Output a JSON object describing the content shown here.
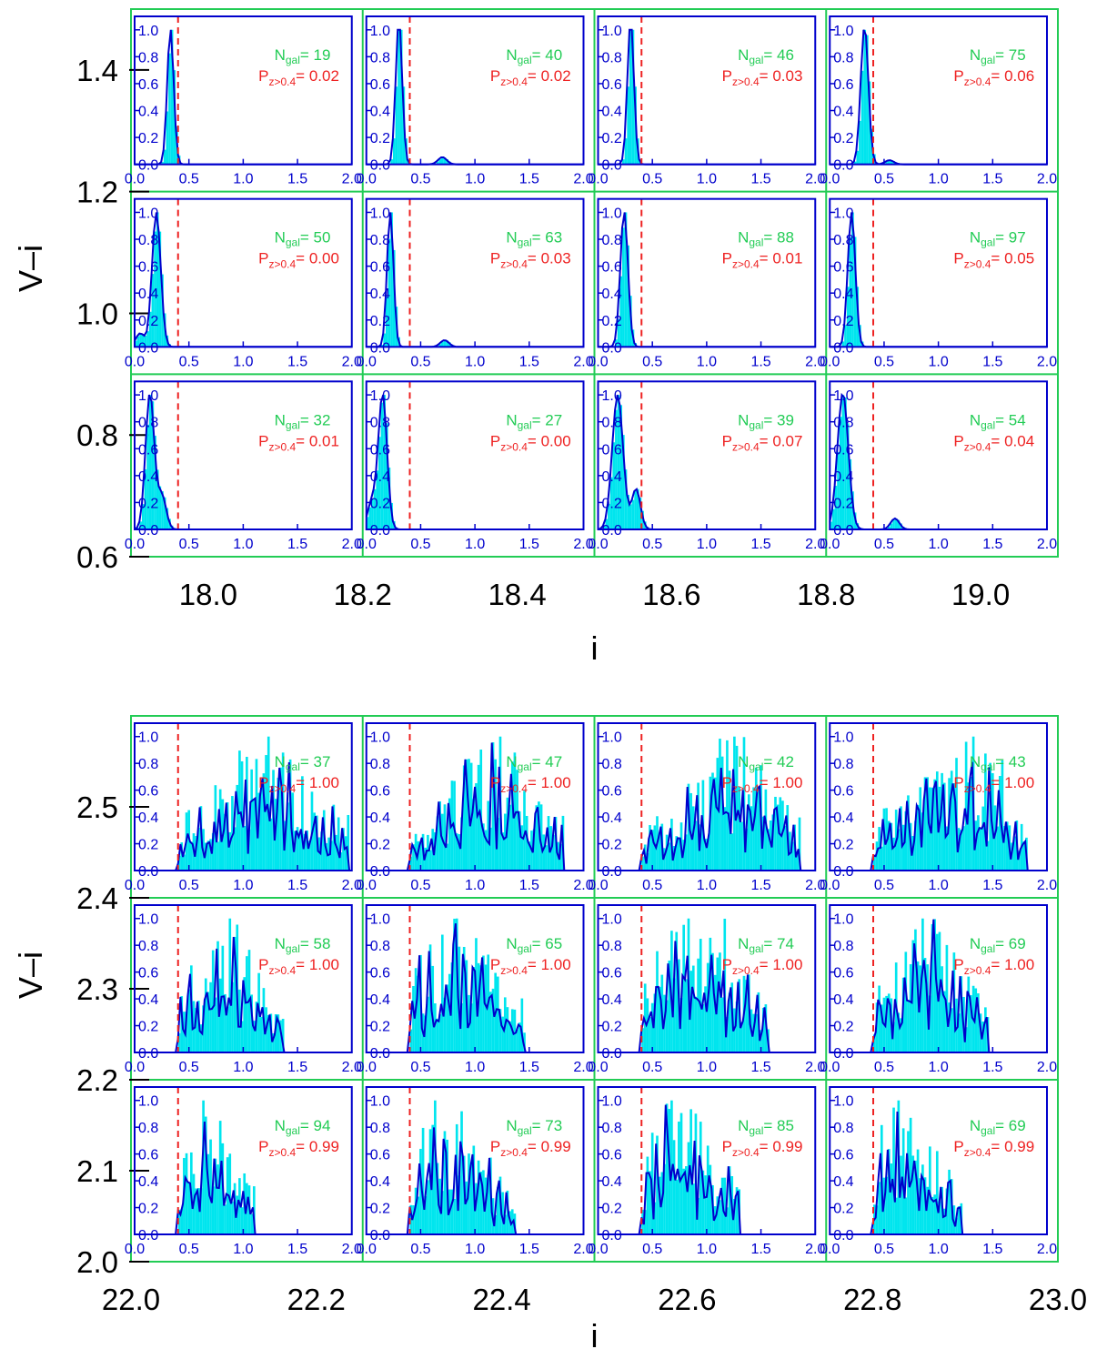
{
  "colors": {
    "frame": "#22cc55",
    "inset_axes": "#0000cc",
    "histogram": "#00e5ee",
    "curve": "#0000cc",
    "cut_line": "#ee2222",
    "n_gal_text": "#22cc55",
    "prob_text": "#ee2222",
    "outer_axis": "#000000"
  },
  "labels": {
    "n_gal_main": "N",
    "n_gal_sub": "gal",
    "n_gal_sep": "= ",
    "p_main": "P",
    "p_sub": "z>0.4",
    "p_sep": "= "
  },
  "chart_data": [
    {
      "type": "histogram-grid",
      "xlabel": "i",
      "ylabel": "V–i",
      "xticks": [
        "18.0",
        "18.2",
        "18.4",
        "18.6",
        "18.8",
        "19.0"
      ],
      "yticks": [
        "0.6",
        "0.8",
        "1.0",
        "1.2",
        "1.4"
      ],
      "xlim": [
        17.9,
        19.1
      ],
      "ylim": [
        0.6,
        1.5
      ],
      "inset_xticks": [
        "0.0",
        "0.5",
        "1.0",
        "1.5",
        "2.0"
      ],
      "inset_yticks": [
        "0.0",
        "0.2",
        "0.4",
        "0.6",
        "0.8",
        "1.0"
      ],
      "inset_xlim": [
        0,
        2
      ],
      "inset_ylim": [
        0,
        1.1
      ],
      "cut_z": 0.4,
      "panels": [
        [
          {
            "n_gal": "19",
            "p": "0.02",
            "peak": 0.33,
            "width": 0.03,
            "extra": []
          },
          {
            "n_gal": "40",
            "p": "0.02",
            "peak": 0.3,
            "width": 0.03,
            "extra": [
              [
                0.7,
                0.05
              ]
            ]
          },
          {
            "n_gal": "46",
            "p": "0.03",
            "peak": 0.3,
            "width": 0.03,
            "extra": []
          },
          {
            "n_gal": "75",
            "p": "0.06",
            "peak": 0.32,
            "width": 0.035,
            "extra": [
              [
                0.55,
                0.03
              ]
            ]
          }
        ],
        [
          {
            "n_gal": "50",
            "p": "0.00",
            "peak": 0.2,
            "width": 0.04,
            "extra": [
              [
                0.05,
                0.1
              ]
            ]
          },
          {
            "n_gal": "63",
            "p": "0.03",
            "peak": 0.22,
            "width": 0.03,
            "extra": [
              [
                0.72,
                0.05
              ]
            ]
          },
          {
            "n_gal": "88",
            "p": "0.01",
            "peak": 0.24,
            "width": 0.035,
            "extra": []
          },
          {
            "n_gal": "97",
            "p": "0.05",
            "peak": 0.2,
            "width": 0.035,
            "extra": []
          }
        ],
        [
          {
            "n_gal": "32",
            "p": "0.01",
            "peak": 0.14,
            "width": 0.04,
            "extra": [
              [
                0.25,
                0.25
              ]
            ]
          },
          {
            "n_gal": "27",
            "p": "0.00",
            "peak": 0.15,
            "width": 0.04,
            "extra": [
              [
                0.05,
                0.2
              ]
            ]
          },
          {
            "n_gal": "39",
            "p": "0.07",
            "peak": 0.18,
            "width": 0.05,
            "extra": [
              [
                0.35,
                0.3
              ]
            ]
          },
          {
            "n_gal": "54",
            "p": "0.04",
            "peak": 0.12,
            "width": 0.05,
            "extra": [
              [
                0.6,
                0.08
              ]
            ]
          }
        ]
      ]
    },
    {
      "type": "histogram-grid",
      "xlabel": "i",
      "ylabel": "V–i",
      "xticks": [
        "22.0",
        "22.2",
        "22.4",
        "22.6",
        "22.8",
        "23.0"
      ],
      "yticks": [
        "2.0",
        "2.1",
        "2.2",
        "2.3",
        "2.4",
        "2.5"
      ],
      "xlim": [
        22.0,
        23.0
      ],
      "ylim": [
        2.0,
        2.6
      ],
      "inset_xticks": [
        "0.0",
        "0.5",
        "1.0",
        "1.5",
        "2.0"
      ],
      "inset_yticks": [
        "0.0",
        "0.2",
        "0.4",
        "0.6",
        "0.8",
        "1.0"
      ],
      "inset_xlim": [
        0,
        2
      ],
      "inset_ylim": [
        0,
        1.1
      ],
      "cut_z": 0.4,
      "panels": [
        [
          {
            "n_gal": "37",
            "p": "1.00",
            "peak": 1.2,
            "width": 0.35,
            "extra": []
          },
          {
            "n_gal": "47",
            "p": "1.00",
            "peak": 1.15,
            "width": 0.3,
            "extra": []
          },
          {
            "n_gal": "42",
            "p": "1.00",
            "peak": 1.2,
            "width": 0.3,
            "extra": []
          },
          {
            "n_gal": "43",
            "p": "1.00",
            "peak": 1.15,
            "width": 0.3,
            "extra": [
              [
                1.58,
                0.2
              ]
            ]
          }
        ],
        [
          {
            "n_gal": "58",
            "p": "1.00",
            "peak": 0.82,
            "width": 0.25,
            "extra": []
          },
          {
            "n_gal": "65",
            "p": "1.00",
            "peak": 0.8,
            "width": 0.3,
            "extra": []
          },
          {
            "n_gal": "74",
            "p": "1.00",
            "peak": 0.9,
            "width": 0.3,
            "extra": []
          },
          {
            "n_gal": "69",
            "p": "1.00",
            "peak": 0.9,
            "width": 0.25,
            "extra": []
          }
        ],
        [
          {
            "n_gal": "94",
            "p": "0.99",
            "peak": 0.65,
            "width": 0.2,
            "extra": []
          },
          {
            "n_gal": "73",
            "p": "0.99",
            "peak": 0.7,
            "width": 0.3,
            "extra": []
          },
          {
            "n_gal": "85",
            "p": "0.99",
            "peak": 0.75,
            "width": 0.25,
            "extra": []
          },
          {
            "n_gal": "69",
            "p": "0.99",
            "peak": 0.65,
            "width": 0.25,
            "extra": []
          }
        ]
      ]
    }
  ]
}
